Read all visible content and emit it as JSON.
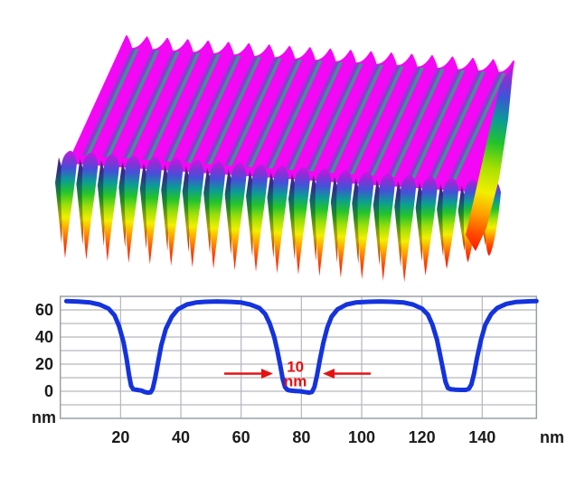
{
  "figure": {
    "kind": "AFM nanograting topography with cross-section profile",
    "surface3d": {
      "ridge_count": 20,
      "front_blade_count": 21,
      "palette": {
        "top_magenta": "#f407f4",
        "stripe_purple": "#8d3cd0",
        "stripe_teal": "#2f9e8e",
        "notch_navy": "#2c3a6e",
        "blade_stops": [
          [
            "0",
            "#cf12e8"
          ],
          [
            "0.07",
            "#8b2fd6"
          ],
          [
            "0.16",
            "#4550d8"
          ],
          [
            "0.27",
            "#0b9c96"
          ],
          [
            "0.38",
            "#23c32c"
          ],
          [
            "0.5",
            "#9adf0a"
          ],
          [
            "0.62",
            "#f2ef00"
          ],
          [
            "0.74",
            "#ff9a00"
          ],
          [
            "0.86",
            "#ff4a00"
          ],
          [
            "1",
            "#fe1000"
          ]
        ],
        "blade_dark_stops": [
          [
            "0",
            "#571c84"
          ],
          [
            "0.15",
            "#2f2f8a"
          ],
          [
            "0.3",
            "#0c6868"
          ],
          [
            "0.45",
            "#1e8a1e"
          ],
          [
            "0.6",
            "#7a9a06"
          ],
          [
            "0.72",
            "#b8a400"
          ],
          [
            "0.85",
            "#c05c00"
          ],
          [
            "1",
            "#b01800"
          ]
        ],
        "right_face_stops": [
          [
            "0",
            "#e20ce2"
          ],
          [
            "0.08",
            "#8b2fd6"
          ],
          [
            "0.18",
            "#3b55d6"
          ],
          [
            "0.3",
            "#0b9c96"
          ],
          [
            "0.42",
            "#23c32c"
          ],
          [
            "0.55",
            "#a8e000"
          ],
          [
            "0.68",
            "#f2ef00"
          ],
          [
            "0.8",
            "#ff9a00"
          ],
          [
            "0.9",
            "#ff4a00"
          ],
          [
            "1",
            "#fe1000"
          ]
        ]
      }
    }
  },
  "chart_data": {
    "type": "line",
    "title": "",
    "xlabel": "nm",
    "ylabel": "nm",
    "xlim": [
      0,
      158
    ],
    "ylim": [
      -20,
      70
    ],
    "xticks": [
      20,
      40,
      60,
      80,
      100,
      120,
      140
    ],
    "yticks": [
      0,
      20,
      40,
      60
    ],
    "grid": {
      "x_step": 20,
      "y_step": 10,
      "color": "#b6b6be",
      "frame_color": "#9aa0a8"
    },
    "line": {
      "color": "#1433dd",
      "width": 5
    },
    "profile": {
      "x": [
        2,
        6,
        10,
        13,
        16,
        18,
        19.5,
        21,
        22,
        22.8,
        23.5,
        24.2,
        25.5,
        27,
        28,
        29,
        30,
        30.7,
        31.5,
        32.5,
        33.5,
        35,
        37,
        39,
        42,
        45,
        48,
        52,
        56,
        60,
        63,
        66,
        68,
        69.5,
        71,
        72,
        73,
        73.8,
        74.6,
        75.4,
        76.5,
        78,
        79.5,
        81,
        82.5,
        83.5,
        84.3,
        85.2,
        86.2,
        87.3,
        88.6,
        90,
        92,
        95,
        98,
        102,
        106,
        110,
        114,
        117,
        120,
        122,
        123.5,
        125,
        126,
        127,
        127.8,
        128.6,
        129.6,
        131,
        133,
        134.6,
        135.6,
        136.4,
        137.3,
        138.3,
        139.6,
        141,
        143,
        145,
        148,
        151,
        154,
        156,
        158
      ],
      "y": [
        66.5,
        66.2,
        65.5,
        64,
        61,
        56,
        48,
        36,
        24,
        12,
        4,
        1.5,
        1,
        0.5,
        -0.5,
        -1,
        -0.8,
        2,
        10,
        22,
        34,
        46,
        55,
        60.5,
        64,
        65.5,
        66,
        66.3,
        66,
        65.5,
        64,
        61.5,
        57,
        50,
        40,
        30,
        19,
        9,
        3,
        1,
        0.5,
        0.2,
        0,
        -0.5,
        -1,
        -0.5,
        3,
        12,
        24,
        36,
        47,
        55,
        60.5,
        64,
        65.5,
        66,
        66.3,
        66,
        65.5,
        64,
        61,
        56.5,
        49,
        38,
        27,
        16,
        7,
        2.5,
        1.5,
        1.2,
        1,
        1,
        2,
        5,
        13,
        25,
        38,
        49,
        57,
        61.5,
        64.5,
        65.8,
        66.2,
        66.4,
        66.5
      ]
    },
    "annotation": {
      "text_line1": "10",
      "text_line2": "nm",
      "color": "#e51212",
      "arrow_y_nm": 13,
      "left_arrow_x_nm": [
        54.4,
        70.6
      ],
      "right_arrow_x_nm": [
        103,
        87.1
      ],
      "label_x_nm": 78,
      "groove_width_nm": 10
    }
  }
}
